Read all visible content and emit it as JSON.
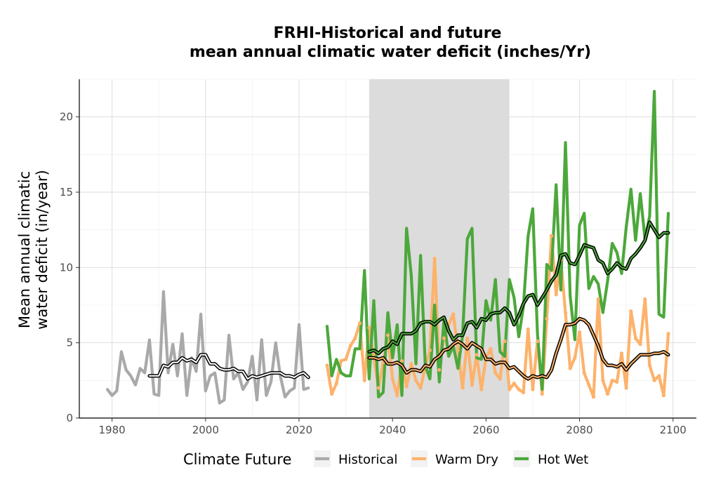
{
  "chart_data": {
    "type": "line",
    "title": "FRHI-Historical and future",
    "subtitle": "mean annual climatic water deficit (inches/Yr)",
    "ylabel_line1": "Mean annual climatic",
    "ylabel_line2": "water deficit (in/year)",
    "xlabel": "",
    "xlim": [
      1973,
      2105
    ],
    "ylim": [
      0,
      22.5
    ],
    "xticks": [
      1980,
      2000,
      2020,
      2040,
      2060,
      2080,
      2100
    ],
    "yticks": [
      0,
      5,
      10,
      15,
      20
    ],
    "grid": true,
    "shaded_period": [
      2035,
      2065
    ],
    "legend": {
      "title": "Climate Future",
      "position": "bottom",
      "entries": [
        "Historical",
        "Warm Dry",
        "Hot Wet"
      ]
    },
    "colors": {
      "Historical": "#a9a9a9",
      "Warm Dry": "#fdb26b",
      "Hot Wet": "#4ca83b",
      "shade": "#dcdcdc",
      "smooth": "#000000"
    },
    "series": [
      {
        "name": "Historical",
        "x": [
          1979,
          1980,
          1981,
          1982,
          1983,
          1984,
          1985,
          1986,
          1987,
          1988,
          1989,
          1990,
          1991,
          1992,
          1993,
          1994,
          1995,
          1996,
          1997,
          1998,
          1999,
          2000,
          2001,
          2002,
          2003,
          2004,
          2005,
          2006,
          2007,
          2008,
          2009,
          2010,
          2011,
          2012,
          2013,
          2014,
          2015,
          2016,
          2017,
          2018,
          2019,
          2020,
          2021,
          2022
        ],
        "y": [
          1.9,
          1.5,
          1.8,
          4.4,
          3.2,
          2.8,
          2.2,
          3.3,
          3.0,
          5.2,
          1.6,
          1.5,
          8.4,
          3.0,
          4.9,
          2.8,
          5.6,
          1.5,
          4.0,
          3.1,
          6.9,
          1.8,
          2.8,
          3.0,
          1.0,
          1.2,
          5.5,
          2.6,
          3.0,
          1.9,
          2.4,
          4.1,
          1.2,
          5.2,
          1.5,
          2.4,
          5.0,
          2.8,
          1.4,
          1.8,
          2.0,
          6.2,
          1.9,
          2.0
        ]
      },
      {
        "name": "Warm Dry",
        "x": [
          2026,
          2027,
          2028,
          2029,
          2030,
          2031,
          2032,
          2033,
          2034,
          2035,
          2036,
          2037,
          2038,
          2039,
          2040,
          2041,
          2042,
          2043,
          2044,
          2045,
          2046,
          2047,
          2048,
          2049,
          2050,
          2051,
          2052,
          2053,
          2054,
          2055,
          2056,
          2057,
          2058,
          2059,
          2060,
          2061,
          2062,
          2063,
          2064,
          2065,
          2066,
          2067,
          2068,
          2069,
          2070,
          2071,
          2072,
          2073,
          2074,
          2075,
          2076,
          2077,
          2078,
          2079,
          2080,
          2081,
          2082,
          2083,
          2084,
          2085,
          2086,
          2087,
          2088,
          2089,
          2090,
          2091,
          2092,
          2093,
          2094,
          2095,
          2096,
          2097,
          2098,
          2099
        ],
        "y": [
          3.5,
          1.6,
          2.3,
          3.8,
          3.9,
          4.8,
          5.3,
          6.3,
          2.5,
          6.0,
          4.0,
          2.0,
          3.7,
          5.5,
          2.6,
          1.5,
          3.8,
          2.1,
          3.6,
          2.5,
          2.0,
          3.4,
          4.5,
          10.6,
          3.2,
          5.3,
          6.2,
          6.9,
          4.5,
          2.0,
          5.3,
          2.2,
          4.2,
          1.9,
          4.0,
          4.6,
          3.0,
          2.6,
          5.1,
          1.9,
          2.3,
          1.9,
          1.7,
          5.9,
          1.9,
          5.1,
          1.6,
          6.6,
          12.1,
          8.2,
          10.5,
          7.0,
          3.3,
          4.0,
          5.7,
          3.0,
          2.2,
          1.4,
          7.9,
          2.5,
          1.6,
          2.5,
          2.4,
          4.3,
          2.0,
          7.1,
          5.3,
          4.9,
          7.9,
          3.5,
          2.5,
          2.8,
          1.5,
          5.6
        ]
      },
      {
        "name": "Hot Wet",
        "x": [
          2026,
          2027,
          2028,
          2029,
          2030,
          2031,
          2032,
          2033,
          2034,
          2035,
          2036,
          2037,
          2038,
          2039,
          2040,
          2041,
          2042,
          2043,
          2044,
          2045,
          2046,
          2047,
          2048,
          2049,
          2050,
          2051,
          2052,
          2053,
          2054,
          2055,
          2056,
          2057,
          2058,
          2059,
          2060,
          2061,
          2062,
          2063,
          2064,
          2065,
          2066,
          2067,
          2068,
          2069,
          2070,
          2071,
          2072,
          2073,
          2074,
          2075,
          2076,
          2077,
          2078,
          2079,
          2080,
          2081,
          2082,
          2083,
          2084,
          2085,
          2086,
          2087,
          2088,
          2089,
          2090,
          2091,
          2092,
          2093,
          2094,
          2095,
          2096,
          2097,
          2098,
          2099
        ],
        "y": [
          6.1,
          2.8,
          3.9,
          3.0,
          2.8,
          2.8,
          4.6,
          4.6,
          9.8,
          2.6,
          7.8,
          1.4,
          1.7,
          7.0,
          4.0,
          6.2,
          1.5,
          12.6,
          9.5,
          3.6,
          10.8,
          3.5,
          2.6,
          7.5,
          2.4,
          6.5,
          4.1,
          4.8,
          3.3,
          5.5,
          11.9,
          12.6,
          4.0,
          3.9,
          7.8,
          6.5,
          9.2,
          4.4,
          4.1,
          9.2,
          8.0,
          5.4,
          7.4,
          12.1,
          13.9,
          5.6,
          1.9,
          10.2,
          9.8,
          15.5,
          8.5,
          18.3,
          8.1,
          5.2,
          12.8,
          13.6,
          8.6,
          9.4,
          8.9,
          7.0,
          9.1,
          11.6,
          11.0,
          9.6,
          12.7,
          15.2,
          11.8,
          14.9,
          11.9,
          13.4,
          21.7,
          6.9,
          6.7,
          13.6
        ]
      }
    ],
    "smoothed": [
      {
        "name": "Historical",
        "x": [
          1988,
          1989,
          1990,
          1991,
          1992,
          1993,
          1994,
          1995,
          1996,
          1997,
          1998,
          1999,
          2000,
          2001,
          2002,
          2003,
          2004,
          2005,
          2006,
          2007,
          2008,
          2009,
          2010,
          2011,
          2012,
          2013,
          2014,
          2015,
          2016,
          2017,
          2018,
          2019,
          2020,
          2021,
          2022
        ],
        "y": [
          2.8,
          2.8,
          2.8,
          3.5,
          3.4,
          3.7,
          3.7,
          4.0,
          3.8,
          3.9,
          3.7,
          4.2,
          4.2,
          3.6,
          3.6,
          3.3,
          3.2,
          3.2,
          3.3,
          3.1,
          3.1,
          2.6,
          2.8,
          2.7,
          2.8,
          2.9,
          3.0,
          3.0,
          3.0,
          2.8,
          2.8,
          2.7,
          2.9,
          3.0,
          2.7
        ]
      },
      {
        "name": "Warm Dry",
        "x": [
          2035,
          2036,
          2037,
          2038,
          2039,
          2040,
          2041,
          2042,
          2043,
          2044,
          2045,
          2046,
          2047,
          2048,
          2049,
          2050,
          2051,
          2052,
          2053,
          2054,
          2055,
          2056,
          2057,
          2058,
          2059,
          2060,
          2061,
          2062,
          2063,
          2064,
          2065,
          2066,
          2067,
          2068,
          2069,
          2070,
          2071,
          2072,
          2073,
          2074,
          2075,
          2076,
          2077,
          2078,
          2079,
          2080,
          2081,
          2082,
          2083,
          2084,
          2085,
          2086,
          2087,
          2088,
          2089,
          2090,
          2091,
          2092,
          2093,
          2094,
          2095,
          2096,
          2097,
          2098,
          2099
        ],
        "y": [
          4.0,
          4.0,
          3.9,
          4.0,
          3.6,
          3.6,
          3.7,
          3.5,
          3.0,
          3.2,
          3.2,
          3.1,
          3.5,
          3.4,
          3.9,
          4.1,
          4.5,
          4.6,
          4.9,
          5.1,
          4.9,
          4.6,
          5.0,
          4.8,
          4.6,
          3.9,
          3.9,
          3.6,
          3.7,
          3.7,
          3.3,
          3.4,
          3.1,
          2.8,
          2.6,
          2.8,
          2.7,
          2.8,
          2.7,
          3.2,
          4.3,
          5.2,
          6.2,
          6.2,
          6.3,
          6.6,
          6.5,
          6.2,
          5.5,
          4.8,
          3.9,
          3.5,
          3.5,
          3.4,
          3.6,
          3.2,
          3.6,
          3.9,
          4.2,
          4.2,
          4.2,
          4.3,
          4.3,
          4.4,
          4.2
        ]
      },
      {
        "name": "Hot Wet",
        "x": [
          2035,
          2036,
          2037,
          2038,
          2039,
          2040,
          2041,
          2042,
          2043,
          2044,
          2045,
          2046,
          2047,
          2048,
          2049,
          2050,
          2051,
          2052,
          2053,
          2054,
          2055,
          2056,
          2057,
          2058,
          2059,
          2060,
          2061,
          2062,
          2063,
          2064,
          2065,
          2066,
          2067,
          2068,
          2069,
          2070,
          2071,
          2072,
          2073,
          2074,
          2075,
          2076,
          2077,
          2078,
          2079,
          2080,
          2081,
          2082,
          2083,
          2084,
          2085,
          2086,
          2087,
          2088,
          2089,
          2090,
          2091,
          2092,
          2093,
          2094,
          2095,
          2096,
          2097,
          2098,
          2099
        ],
        "y": [
          4.4,
          4.5,
          4.3,
          4.6,
          4.7,
          5.1,
          4.9,
          5.6,
          5.6,
          5.6,
          5.8,
          6.3,
          6.4,
          6.4,
          6.2,
          6.5,
          6.7,
          5.8,
          5.2,
          5.5,
          5.5,
          6.3,
          6.4,
          6.0,
          6.6,
          6.5,
          6.9,
          7.0,
          7.0,
          7.3,
          7.0,
          6.2,
          6.8,
          7.6,
          8.1,
          8.2,
          7.5,
          8.0,
          8.5,
          9.1,
          9.5,
          10.8,
          10.9,
          10.3,
          10.2,
          10.8,
          11.5,
          11.4,
          11.3,
          10.5,
          10.3,
          9.6,
          9.9,
          10.3,
          10.0,
          9.9,
          10.6,
          10.9,
          11.3,
          11.8,
          13.0,
          12.5,
          12.0,
          12.3,
          12.3
        ]
      }
    ]
  }
}
